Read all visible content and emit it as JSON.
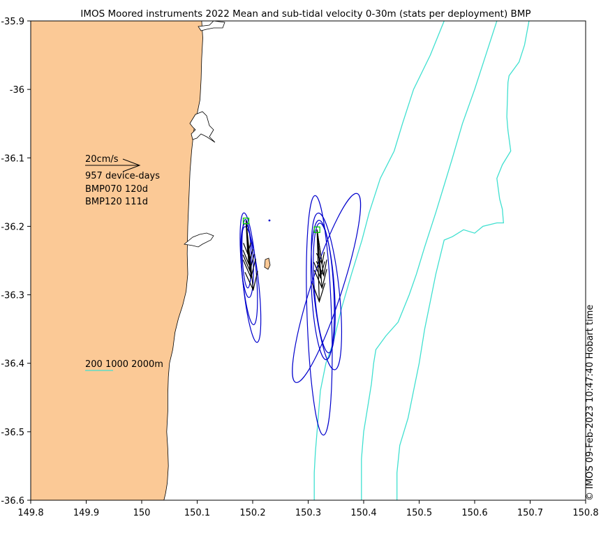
{
  "chart_data": {
    "type": "map-vector",
    "title": "IMOS Moored instruments 2022 Mean and sub-tidal velocity 0-30m (stats per deployment) BMP",
    "xlim": [
      149.8,
      150.8
    ],
    "ylim": [
      -36.6,
      -35.9
    ],
    "x_ticks": [
      149.8,
      149.9,
      150,
      150.1,
      150.2,
      150.3,
      150.4,
      150.5,
      150.6,
      150.7,
      150.8
    ],
    "x_tick_labels": [
      "149.8",
      "149.9",
      "150",
      "150.1",
      "150.2",
      "150.3",
      "150.4",
      "150.5",
      "150.6",
      "150.7",
      "150.8"
    ],
    "y_ticks": [
      -35.9,
      -36,
      -36.1,
      -36.2,
      -36.3,
      -36.4,
      -36.5,
      -36.6
    ],
    "y_tick_labels": [
      "-35.9",
      "-36",
      "-36.1",
      "-36.2",
      "-36.3",
      "-36.4",
      "-36.5",
      "-36.6"
    ],
    "legend": {
      "scale_label": "20cm/s",
      "device_days": "957 device-days",
      "deployments": [
        "BMP070 120d",
        "BMP120 111d"
      ],
      "isobath_label": "200 1000 2000m"
    },
    "timestamp_label": "© IMOS 09-Feb-2023 10:47:40 Hobart time",
    "colors": {
      "land": "#fbc996",
      "isobath": "#40e0d0",
      "ellipse": "#0000cc",
      "arrow": "#000000",
      "mooring": "#00cc00"
    },
    "moorings": [
      {
        "name": "BMP070",
        "lon": 150.188,
        "lat": -36.192,
        "vectors": [
          [
            150.191,
            -36.24
          ],
          [
            150.193,
            -36.255
          ],
          [
            150.195,
            -36.265
          ],
          [
            150.197,
            -36.275
          ],
          [
            150.201,
            -36.293
          ]
        ],
        "ellipses": [
          {
            "cx": 150.19,
            "cy": -36.25,
            "rx": 0.011,
            "ry": 0.054,
            "rot": -3
          },
          {
            "cx": 150.193,
            "cy": -36.262,
            "rx": 0.013,
            "ry": 0.082,
            "rot": -5
          },
          {
            "cx": 150.197,
            "cy": -36.285,
            "rx": 0.014,
            "ry": 0.085,
            "rot": -6
          },
          {
            "cx": 150.189,
            "cy": -36.24,
            "rx": 0.008,
            "ry": 0.05,
            "rot": -2
          }
        ]
      },
      {
        "name": "BMP120",
        "lon": 150.316,
        "lat": -36.205,
        "vectors": [
          [
            150.325,
            -36.255
          ],
          [
            150.328,
            -36.272
          ],
          [
            150.322,
            -36.275
          ],
          [
            150.325,
            -36.29
          ],
          [
            150.32,
            -36.31
          ]
        ],
        "ellipses": [
          {
            "cx": 150.32,
            "cy": -36.33,
            "rx": 0.022,
            "ry": 0.175,
            "rot": -2
          },
          {
            "cx": 150.333,
            "cy": -36.295,
            "rx": 0.023,
            "ry": 0.115,
            "rot": -6
          },
          {
            "cx": 150.329,
            "cy": -36.29,
            "rx": 0.018,
            "ry": 0.095,
            "rot": -4
          },
          {
            "cx": 150.326,
            "cy": -36.293,
            "rx": 0.02,
            "ry": 0.102,
            "rot": -3
          },
          {
            "cx": 150.333,
            "cy": -36.29,
            "rx": 0.028,
            "ry": 0.145,
            "rot": 18
          }
        ]
      }
    ],
    "coastline": [
      [
        149.8,
        -35.9
      ],
      [
        150.108,
        -35.9
      ],
      [
        150.11,
        -35.925
      ],
      [
        150.108,
        -35.955
      ],
      [
        150.107,
        -35.985
      ],
      [
        150.105,
        -36.015
      ],
      [
        150.1,
        -36.035
      ],
      [
        150.094,
        -36.06
      ],
      [
        150.09,
        -36.09
      ],
      [
        150.087,
        -36.12
      ],
      [
        150.085,
        -36.16
      ],
      [
        150.083,
        -36.2
      ],
      [
        150.082,
        -36.24
      ],
      [
        150.083,
        -36.27
      ],
      [
        150.08,
        -36.295
      ],
      [
        150.074,
        -36.315
      ],
      [
        150.066,
        -36.335
      ],
      [
        150.06,
        -36.355
      ],
      [
        150.056,
        -36.38
      ],
      [
        150.05,
        -36.4
      ],
      [
        150.048,
        -36.42
      ],
      [
        150.047,
        -36.445
      ],
      [
        150.047,
        -36.47
      ],
      [
        150.045,
        -36.5
      ],
      [
        150.047,
        -36.525
      ],
      [
        150.048,
        -36.55
      ],
      [
        150.046,
        -36.575
      ],
      [
        150.043,
        -36.59
      ],
      [
        150.04,
        -36.6
      ],
      [
        149.8,
        -36.6
      ]
    ],
    "isobaths": [
      {
        "depth": 200,
        "points": [
          [
            150.311,
            -36.6
          ],
          [
            150.311,
            -36.56
          ],
          [
            150.313,
            -36.53
          ],
          [
            150.318,
            -36.48
          ],
          [
            150.322,
            -36.44
          ],
          [
            150.332,
            -36.4
          ],
          [
            150.345,
            -36.37
          ],
          [
            150.36,
            -36.32
          ],
          [
            150.378,
            -36.27
          ],
          [
            150.397,
            -36.22
          ],
          [
            150.41,
            -36.18
          ],
          [
            150.43,
            -36.13
          ],
          [
            150.455,
            -36.09
          ],
          [
            150.47,
            -36.05
          ],
          [
            150.49,
            -36.0
          ],
          [
            150.52,
            -35.95
          ],
          [
            150.545,
            -35.9
          ]
        ]
      },
      {
        "depth": 1000,
        "points": [
          [
            150.396,
            -36.6
          ],
          [
            150.396,
            -36.54
          ],
          [
            150.4,
            -36.5
          ],
          [
            150.408,
            -36.46
          ],
          [
            150.414,
            -36.43
          ],
          [
            150.418,
            -36.4
          ],
          [
            150.422,
            -36.38
          ],
          [
            150.44,
            -36.36
          ],
          [
            150.462,
            -36.34
          ],
          [
            150.482,
            -36.3
          ],
          [
            150.495,
            -36.27
          ],
          [
            150.51,
            -36.23
          ],
          [
            150.53,
            -36.18
          ],
          [
            150.545,
            -36.14
          ],
          [
            150.56,
            -36.1
          ],
          [
            150.578,
            -36.05
          ],
          [
            150.6,
            -36.0
          ],
          [
            150.62,
            -35.95
          ],
          [
            150.64,
            -35.9
          ]
        ]
      },
      {
        "depth": 2000,
        "points": [
          [
            150.46,
            -36.6
          ],
          [
            150.46,
            -36.56
          ],
          [
            150.465,
            -36.52
          ],
          [
            150.48,
            -36.48
          ],
          [
            150.49,
            -36.44
          ],
          [
            150.5,
            -36.4
          ],
          [
            150.51,
            -36.35
          ],
          [
            150.52,
            -36.31
          ],
          [
            150.53,
            -36.27
          ],
          [
            150.545,
            -36.22
          ],
          [
            150.56,
            -36.215
          ],
          [
            150.58,
            -36.205
          ],
          [
            150.6,
            -36.21
          ],
          [
            150.615,
            -36.2
          ],
          [
            150.64,
            -36.195
          ],
          [
            150.652,
            -36.195
          ],
          [
            150.65,
            -36.175
          ],
          [
            150.645,
            -36.16
          ],
          [
            150.64,
            -36.13
          ],
          [
            150.65,
            -36.11
          ],
          [
            150.665,
            -36.09
          ],
          [
            150.66,
            -36.06
          ],
          [
            150.658,
            -36.04
          ],
          [
            150.66,
            -35.99
          ],
          [
            150.662,
            -35.98
          ],
          [
            150.68,
            -35.96
          ],
          [
            150.69,
            -35.935
          ],
          [
            150.698,
            -35.9
          ]
        ]
      }
    ]
  }
}
